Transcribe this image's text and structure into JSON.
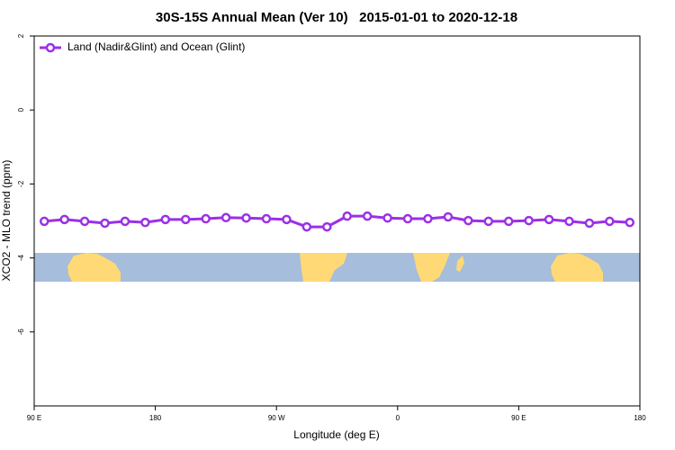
{
  "chart_data": {
    "type": "line",
    "title": "30S-15S Annual Mean (Ver 10)   2015-01-01 to 2020-12-18",
    "xlabel": "Longitude (deg E)",
    "ylabel": "XCO2 - MLO trend (ppm)",
    "xlim": [
      90,
      540
    ],
    "xticks": [
      {
        "value": 90,
        "label": "90 E"
      },
      180,
      {
        "value": 270,
        "label": "90 W"
      },
      {
        "value": 360,
        "label": "0"
      },
      {
        "value": 450,
        "label": "90 E"
      },
      {
        "value": 540,
        "label": "180"
      }
    ],
    "ylim": [
      -8,
      2
    ],
    "yticks": [
      2,
      0,
      -2,
      -4,
      -6
    ],
    "legend": "top-left",
    "x": [
      97.5,
      112.5,
      127.5,
      142.5,
      157.5,
      172.5,
      187.5,
      202.5,
      217.5,
      232.5,
      247.5,
      262.5,
      277.5,
      292.5,
      307.5,
      322.5,
      337.5,
      352.5,
      367.5,
      382.5,
      397.5,
      412.5,
      427.5,
      442.5,
      457.5,
      472.5,
      487.5,
      502.5,
      517.5,
      532.5
    ],
    "series": [
      {
        "name": "Land (Nadir&Glint) and Ocean (Glint)",
        "color": "#9b30e6",
        "values": [
          -3.01,
          -2.96,
          -3.01,
          -3.06,
          -3.01,
          -3.04,
          -2.96,
          -2.96,
          -2.94,
          -2.91,
          -2.92,
          -2.94,
          -2.96,
          -3.16,
          -3.16,
          -2.87,
          -2.87,
          -2.92,
          -2.94,
          -2.94,
          -2.89,
          -2.99,
          -3.01,
          -3.01,
          -2.99,
          -2.96,
          -3.01,
          -3.06,
          -3.01,
          -3.04
        ]
      }
    ]
  }
}
